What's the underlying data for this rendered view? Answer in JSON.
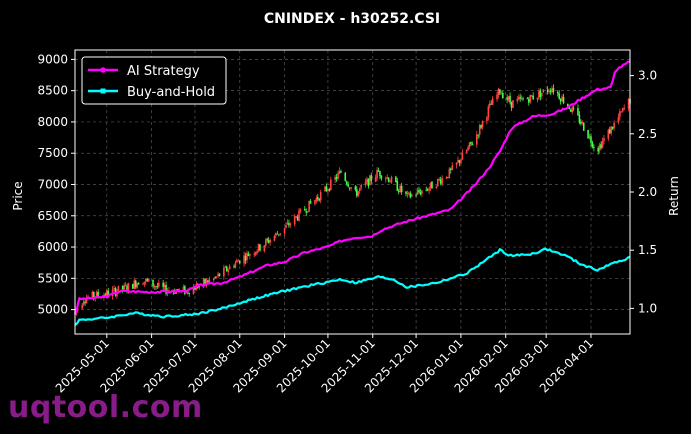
{
  "chart_data": {
    "type": "line",
    "title": "CNINDEX - h30252.CSI",
    "ylabel_left": "Price",
    "ylabel_right": "Return",
    "xlabel": "",
    "grid": true,
    "legend_placement": "top-left",
    "colors": {
      "background": "#000000",
      "strategy": "#ff00ff",
      "buyhold": "#00ffff",
      "candle_up": "#ff4444",
      "candle_down": "#44ff44",
      "text": "#ffffff",
      "watermark": "#8a1c8a"
    },
    "x_range": [
      "2025-04-09",
      "2026-04-28"
    ],
    "x_ticks": [
      "2025-05-01",
      "2025-06-01",
      "2025-07-01",
      "2025-08-01",
      "2025-09-01",
      "2025-10-01",
      "2025-11-01",
      "2025-12-01",
      "2026-01-01",
      "2026-02-01",
      "2026-03-01",
      "2026-04-01"
    ],
    "y_left_range": [
      4610,
      9150
    ],
    "y_left_ticks": [
      5000,
      5500,
      6000,
      6500,
      7000,
      7500,
      8000,
      8500,
      9000
    ],
    "y_right_range": [
      0.78,
      3.22
    ],
    "y_right_ticks": [
      1.0,
      1.5,
      2.0,
      2.5,
      3.0
    ],
    "price_keypoints": [
      [
        "2025-04-09",
        4950
      ],
      [
        "2025-04-15",
        5180
      ],
      [
        "2025-04-30",
        5250
      ],
      [
        "2025-05-15",
        5350
      ],
      [
        "2025-05-25",
        5480
      ],
      [
        "2025-06-10",
        5320
      ],
      [
        "2025-06-25",
        5300
      ],
      [
        "2025-07-15",
        5500
      ],
      [
        "2025-08-01",
        5800
      ],
      [
        "2025-08-15",
        6000
      ],
      [
        "2025-09-01",
        6300
      ],
      [
        "2025-09-15",
        6600
      ],
      [
        "2025-10-01",
        6950
      ],
      [
        "2025-10-10",
        7200
      ],
      [
        "2025-10-20",
        6850
      ],
      [
        "2025-11-05",
        7200
      ],
      [
        "2025-11-12",
        7100
      ],
      [
        "2025-11-25",
        6800
      ],
      [
        "2025-12-10",
        6950
      ],
      [
        "2025-12-25",
        7200
      ],
      [
        "2026-01-10",
        7700
      ],
      [
        "2026-01-20",
        8200
      ],
      [
        "2026-01-28",
        8500
      ],
      [
        "2026-02-05",
        8300
      ],
      [
        "2026-02-20",
        8400
      ],
      [
        "2026-03-05",
        8550
      ],
      [
        "2026-03-15",
        8300
      ],
      [
        "2026-03-25",
        8000
      ],
      [
        "2026-04-05",
        7550
      ],
      [
        "2026-04-18",
        8000
      ],
      [
        "2026-04-28",
        8350
      ]
    ],
    "series": [
      {
        "name": "AI Strategy",
        "points": [
          [
            "2025-04-09",
            0.95
          ],
          [
            "2025-04-12",
            1.08
          ],
          [
            "2025-05-01",
            1.1
          ],
          [
            "2025-05-10",
            1.15
          ],
          [
            "2025-06-01",
            1.14
          ],
          [
            "2025-06-25",
            1.15
          ],
          [
            "2025-07-05",
            1.2
          ],
          [
            "2025-07-20",
            1.22
          ],
          [
            "2025-08-01",
            1.27
          ],
          [
            "2025-08-20",
            1.37
          ],
          [
            "2025-09-01",
            1.4
          ],
          [
            "2025-09-15",
            1.48
          ],
          [
            "2025-10-01",
            1.53
          ],
          [
            "2025-10-10",
            1.58
          ],
          [
            "2025-10-20",
            1.61
          ],
          [
            "2025-10-31",
            1.62
          ],
          [
            "2025-11-08",
            1.68
          ],
          [
            "2025-11-25",
            1.75
          ],
          [
            "2025-12-10",
            1.8
          ],
          [
            "2025-12-25",
            1.85
          ],
          [
            "2026-01-10",
            2.05
          ],
          [
            "2026-01-20",
            2.2
          ],
          [
            "2026-01-28",
            2.35
          ],
          [
            "2026-02-05",
            2.55
          ],
          [
            "2026-02-20",
            2.65
          ],
          [
            "2026-03-05",
            2.67
          ],
          [
            "2026-03-15",
            2.72
          ],
          [
            "2026-03-25",
            2.8
          ],
          [
            "2026-04-05",
            2.88
          ],
          [
            "2026-04-15",
            2.9
          ],
          [
            "2026-04-18",
            3.05
          ],
          [
            "2026-04-28",
            3.12
          ]
        ]
      },
      {
        "name": "Buy-and-Hold",
        "points": [
          [
            "2025-04-09",
            0.86
          ],
          [
            "2025-04-12",
            0.9
          ],
          [
            "2025-05-01",
            0.92
          ],
          [
            "2025-05-20",
            0.96
          ],
          [
            "2025-06-10",
            0.93
          ],
          [
            "2025-07-01",
            0.95
          ],
          [
            "2025-07-20",
            1.0
          ],
          [
            "2025-08-10",
            1.08
          ],
          [
            "2025-09-01",
            1.15
          ],
          [
            "2025-09-20",
            1.2
          ],
          [
            "2025-10-10",
            1.25
          ],
          [
            "2025-10-20",
            1.22
          ],
          [
            "2025-11-05",
            1.27
          ],
          [
            "2025-11-15",
            1.25
          ],
          [
            "2025-11-25",
            1.18
          ],
          [
            "2025-12-15",
            1.22
          ],
          [
            "2026-01-05",
            1.3
          ],
          [
            "2026-01-20",
            1.43
          ],
          [
            "2026-01-28",
            1.5
          ],
          [
            "2026-02-05",
            1.45
          ],
          [
            "2026-02-20",
            1.47
          ],
          [
            "2026-03-01",
            1.51
          ],
          [
            "2026-03-15",
            1.45
          ],
          [
            "2026-03-25",
            1.38
          ],
          [
            "2026-04-05",
            1.33
          ],
          [
            "2026-04-15",
            1.38
          ],
          [
            "2026-04-28",
            1.44
          ]
        ]
      }
    ]
  },
  "watermark": "uqtool.com"
}
